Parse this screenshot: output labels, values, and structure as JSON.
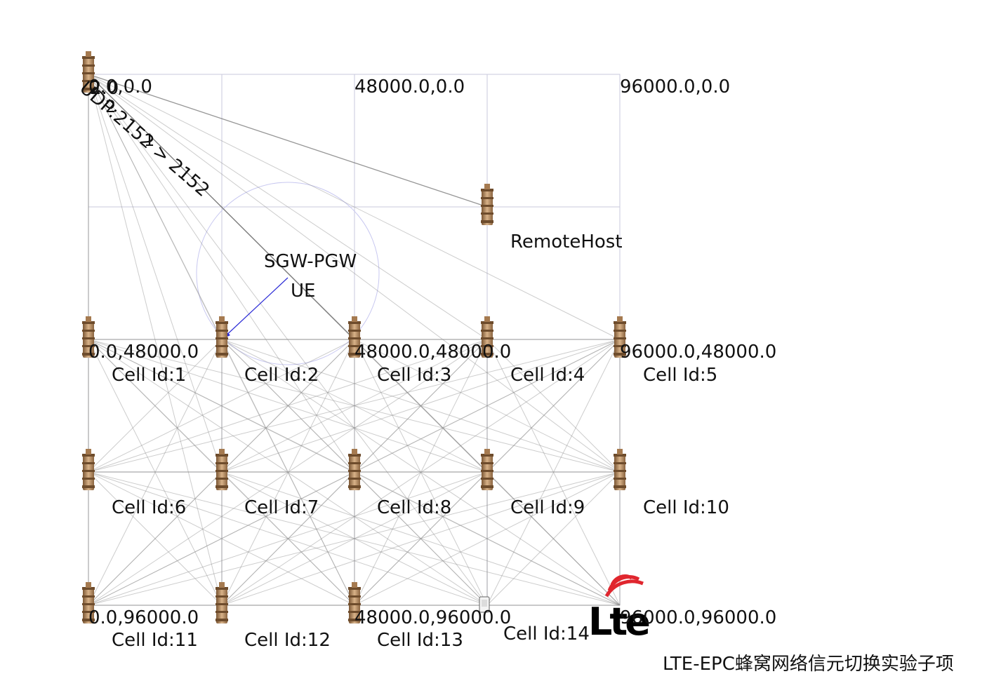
{
  "coords": {
    "c00": "0.0,0.0",
    "c48_0": "48000.0,0.0",
    "c96_0": "96000.0,0.0",
    "c0_48": "0.0,48000.0",
    "c48_48": "48000.0,48000.0",
    "c96_48": "96000.0,48000.0",
    "c0_96": "0.0,96000.0",
    "c48_96": "48000.0,96000.0",
    "c96_96": "96000.0,96000.0"
  },
  "nodes": {
    "remote_host": "RemoteHost",
    "sgw_pgw": "SGW-PGW",
    "ue": "UE",
    "node_id_a": "2.0",
    "node_id_b": "2",
    "node_id_c": "1"
  },
  "packet": "UDP:2152 > 2152",
  "cells": [
    "Cell Id:1",
    "Cell Id:2",
    "Cell Id:3",
    "Cell Id:4",
    "Cell Id:5",
    "Cell Id:6",
    "Cell Id:7",
    "Cell Id:8",
    "Cell Id:9",
    "Cell Id:10",
    "Cell Id:11",
    "Cell Id:12",
    "Cell Id:13",
    "Cell Id:14"
  ],
  "logo_text": "Lte",
  "caption": "LTE-EPC蜂窝网络信元切换实验子项",
  "colors": {
    "grid": "#c9c9dc",
    "ue_link": "#2b2bd6",
    "lte_red": "#e0262e",
    "tower": "#b58a5a"
  },
  "icons": [
    "tower-icon",
    "lte-logo-icon",
    "phone-icon"
  ]
}
